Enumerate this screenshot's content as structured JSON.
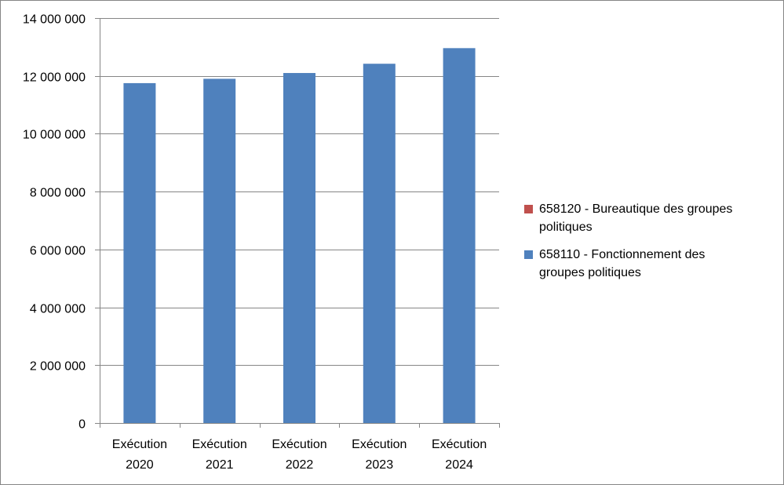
{
  "chart_data": {
    "type": "bar",
    "categories": [
      [
        "Exécution",
        "2020"
      ],
      [
        "Exécution",
        "2021"
      ],
      [
        "Exécution",
        "2022"
      ],
      [
        "Exécution",
        "2023"
      ],
      [
        "Exécution",
        "2024"
      ]
    ],
    "series": [
      {
        "name": "658120 - Bureautique des groupes politiques",
        "color": "#C0504D",
        "values": [
          0,
          0,
          0,
          0,
          0
        ]
      },
      {
        "name": "658110 - Fonctionnement des groupes politiques",
        "color": "#4F81BD",
        "values": [
          11750000,
          11900000,
          12100000,
          12420000,
          12960000
        ]
      }
    ],
    "stacked": true,
    "ylim": [
      0,
      14000000
    ],
    "yticks": [
      0,
      2000000,
      4000000,
      6000000,
      8000000,
      10000000,
      12000000,
      14000000
    ],
    "ytick_labels": [
      "0",
      "2 000 000",
      "4 000 000",
      "6 000 000",
      "8 000 000",
      "10 000 000",
      "12 000 000",
      "14 000 000"
    ],
    "grid": true,
    "legend_position": "right",
    "title": "",
    "xlabel": "",
    "ylabel": ""
  },
  "legend": {
    "items": [
      {
        "line1": "658120 - Bureautique des groupes",
        "line2": "politiques",
        "color": "#C0504D"
      },
      {
        "line1": "658110 - Fonctionnement des",
        "line2": "groupes politiques",
        "color": "#4F81BD"
      }
    ]
  }
}
